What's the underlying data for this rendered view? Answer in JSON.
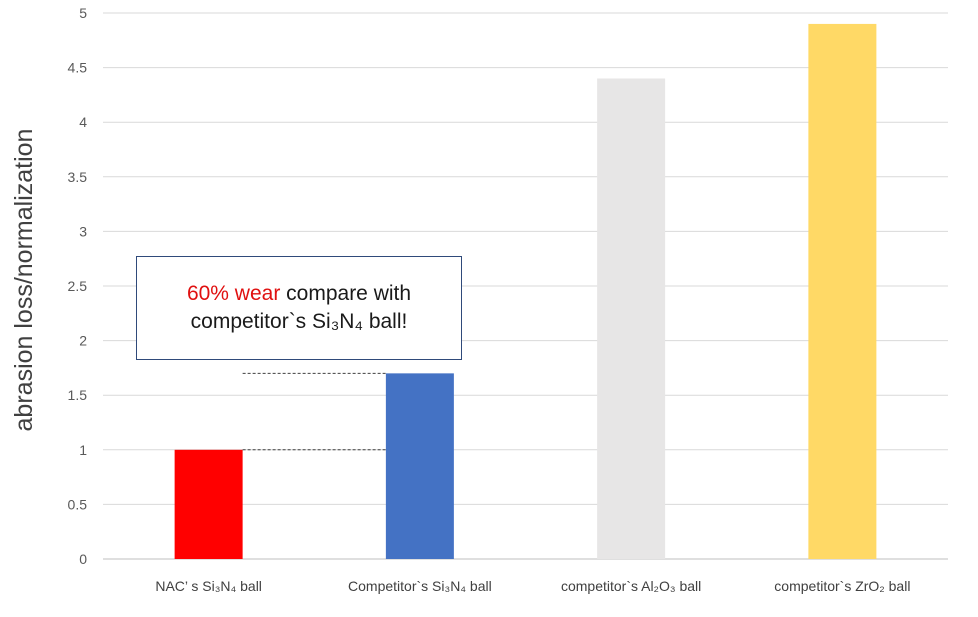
{
  "chart_data": {
    "type": "bar",
    "ylabel": "abrasion loss/normalization",
    "ylim": [
      0,
      5
    ],
    "yticks": [
      "0",
      "0.5",
      "1",
      "1.5",
      "2",
      "2.5",
      "3",
      "3.5",
      "4",
      "4.5",
      "5"
    ],
    "grid": true,
    "categories": [
      "NAC’ s Si₃N₄ ball",
      "Competitor`s Si₃N₄ ball",
      "competitor`s Al₂O₃ ball",
      "competitor`s ZrO₂ ball"
    ],
    "values": [
      1.0,
      1.7,
      4.4,
      4.9
    ],
    "colors": [
      "#ff0000",
      "#4472c4",
      "#e7e6e6",
      "#ffd966"
    ],
    "annotation": {
      "highlight": "60% wear",
      "rest_line1": " compare with",
      "line2": "competitor`s Si₃N₄ ball!",
      "highlight_color": "#e01010"
    }
  }
}
